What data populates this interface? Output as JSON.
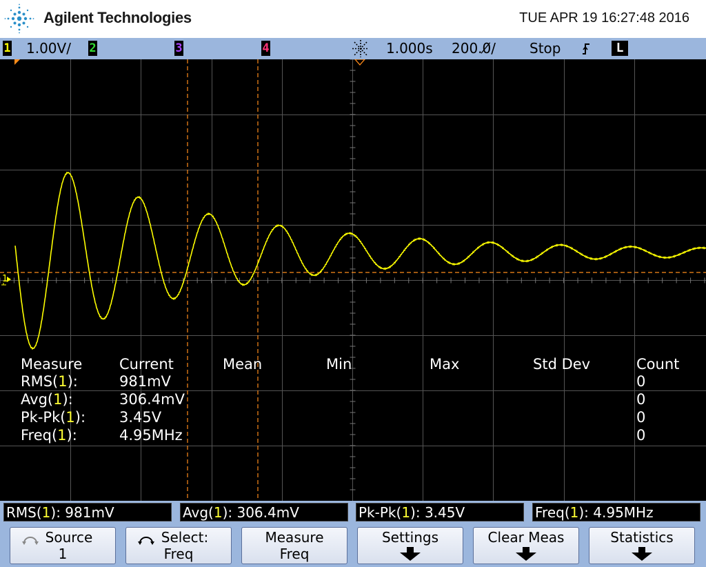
{
  "header": {
    "brand": "Agilent Technologies",
    "datetime": "TUE APR 19 16:27:48 2016"
  },
  "status_bar": {
    "ch1_num": "1",
    "ch1_scale": "1.00V/",
    "ch2_num": "2",
    "ch3_num": "3",
    "ch4_num": "4",
    "time_delay": "1.000s",
    "time_scale": "200.0̸/",
    "run_state": "Stop",
    "trigger_slope": "ʃ",
    "trigger_mode": "L",
    "colors": {
      "ch1": "#ffff00",
      "ch2": "#33dd33",
      "ch3": "#aa44ff",
      "ch4": "#ff3377",
      "bar": "#9bb6dd"
    }
  },
  "grid": {
    "ground_marker": "1",
    "trace_color": "#ffff00"
  },
  "measure_table": {
    "headers": [
      "Measure",
      "Current",
      "Mean",
      "Min",
      "Max",
      "Std Dev",
      "Count"
    ],
    "rows": [
      {
        "name": "RMS(",
        "ch": "1",
        "close": "):",
        "current": "981mV",
        "count": "0"
      },
      {
        "name": "Avg(",
        "ch": "1",
        "close": "):",
        "current": "306.4mV",
        "count": "0"
      },
      {
        "name": "Pk-Pk(",
        "ch": "1",
        "close": "):",
        "current": "3.45V",
        "count": "0"
      },
      {
        "name": "Freq(",
        "ch": "1",
        "close": "):",
        "current": "4.95MHz",
        "count": "0"
      }
    ]
  },
  "quick_meas": [
    {
      "name": "RMS(",
      "ch": "1",
      "rest": "): 981mV"
    },
    {
      "name": "Avg(",
      "ch": "1",
      "rest": "): 306.4mV"
    },
    {
      "name": "Pk-Pk(",
      "ch": "1",
      "rest": "): 3.45V"
    },
    {
      "name": "Freq(",
      "ch": "1",
      "rest": "): 4.95MHz"
    }
  ],
  "softkeys": [
    {
      "line1": "Source",
      "line2": "1",
      "icon": "knob-icon"
    },
    {
      "line1": "Select:",
      "line2": "Freq",
      "icon": "knob-icon"
    },
    {
      "line1": "Measure",
      "line2": "Freq"
    },
    {
      "line1": "Settings",
      "line2": "",
      "icon": "arrow-down-icon"
    },
    {
      "line1": "Clear Meas",
      "line2": "",
      "icon": "arrow-down-icon"
    },
    {
      "line1": "Statistics",
      "line2": "",
      "icon": "arrow-down-icon"
    }
  ]
}
